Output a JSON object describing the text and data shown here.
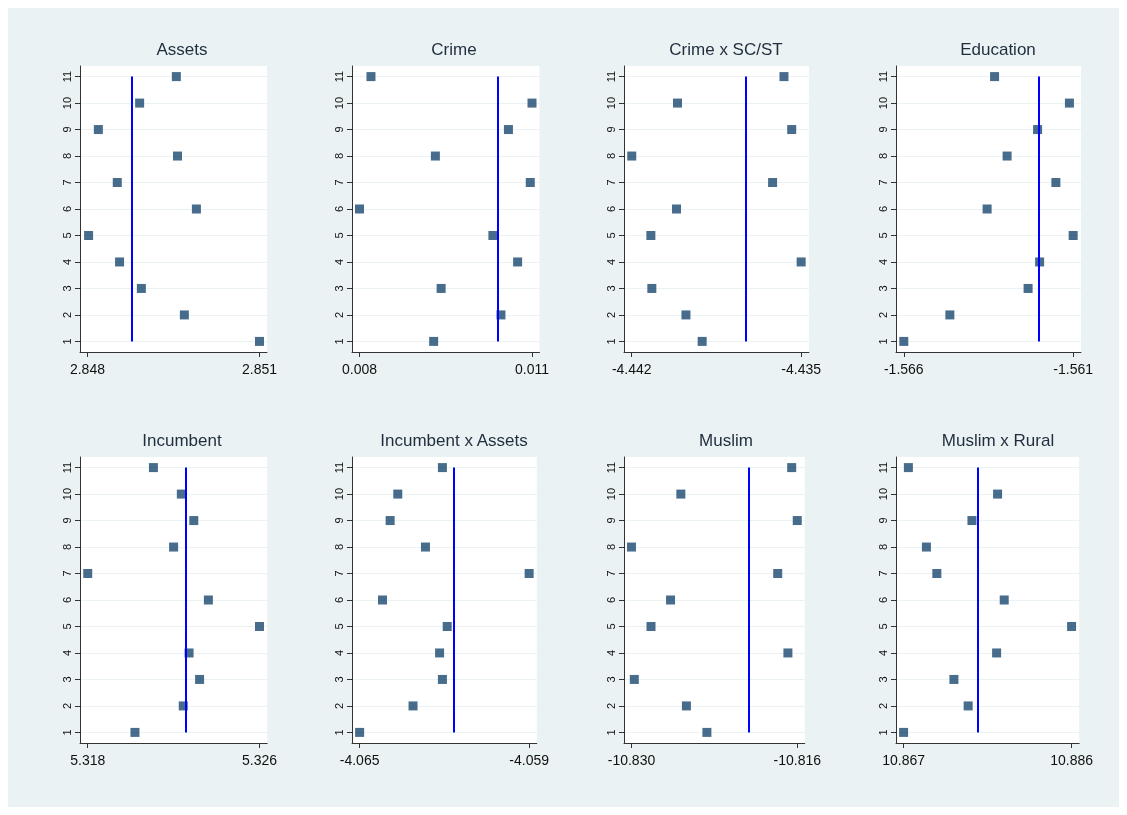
{
  "chart_data": [
    {
      "type": "scatter",
      "title": "Assets",
      "marker": "square",
      "grid": "y",
      "x": [
        2.851,
        2.84969,
        2.84894,
        2.84856,
        2.84802,
        2.8499,
        2.84852,
        2.84957,
        2.84819,
        2.84891,
        2.84955
      ],
      "values": [
        1,
        2,
        3,
        4,
        5,
        6,
        7,
        8,
        9,
        10,
        11
      ],
      "color": "#1a476f",
      "xlim": [
        2.84787,
        2.85113
      ],
      "xticks": [
        2.848,
        2.851
      ],
      "ylim": [
        0.6,
        11.4
      ],
      "yticks": [
        1,
        2,
        3,
        4,
        5,
        6,
        7,
        8,
        9,
        10,
        11
      ],
      "ref_lines": [
        {
          "axis": "x",
          "value": 2.84878,
          "color": "#0000ff"
        }
      ]
    },
    {
      "type": "scatter",
      "title": "Crime",
      "marker": "square",
      "grid": "y",
      "x": [
        0.00929,
        0.01046,
        0.00942,
        0.01075,
        0.01032,
        0.008,
        0.01097,
        0.00932,
        0.01059,
        0.011,
        0.0082
      ],
      "values": [
        1,
        2,
        3,
        4,
        5,
        6,
        7,
        8,
        9,
        10,
        11
      ],
      "color": "#1a476f",
      "xlim": [
        0.00787,
        0.01113
      ],
      "xticks": [
        0.008,
        0.011
      ],
      "ylim": [
        0.6,
        11.4
      ],
      "yticks": [
        1,
        2,
        3,
        4,
        5,
        6,
        7,
        8,
        9,
        10,
        11
      ],
      "ref_lines": [
        {
          "axis": "x",
          "value": 0.01041,
          "color": "#0000ff"
        }
      ]
    },
    {
      "type": "scatter",
      "title": "Crime x SC/ST",
      "marker": "square",
      "grid": "y",
      "x": [
        -4.43909,
        -4.43976,
        -4.44117,
        -4.435,
        -4.44121,
        -4.44015,
        -4.43618,
        -4.442,
        -4.43539,
        -4.44011,
        -4.43571
      ],
      "values": [
        1,
        2,
        3,
        4,
        5,
        6,
        7,
        8,
        9,
        10,
        11
      ],
      "color": "#1a476f",
      "xlim": [
        -4.44232,
        -4.43468
      ],
      "xticks": [
        -4.442,
        -4.435
      ],
      "ylim": [
        0.6,
        11.4
      ],
      "yticks": [
        1,
        2,
        3,
        4,
        5,
        6,
        7,
        8,
        9,
        10,
        11
      ],
      "ref_lines": [
        {
          "axis": "x",
          "value": -4.43728,
          "color": "#0000ff"
        }
      ]
    },
    {
      "type": "scatter",
      "title": "Education",
      "marker": "square",
      "grid": "y",
      "x": [
        -1.566,
        -1.56464,
        -1.56233,
        -1.56199,
        -1.561,
        -1.56354,
        -1.56151,
        -1.56295,
        -1.56205,
        -1.56111,
        -1.56332
      ],
      "values": [
        1,
        2,
        3,
        4,
        5,
        6,
        7,
        8,
        9,
        10,
        11
      ],
      "color": "#1a476f",
      "xlim": [
        -1.56623,
        -1.56077
      ],
      "xticks": [
        -1.566,
        -1.561
      ],
      "ylim": [
        0.6,
        11.4
      ],
      "yticks": [
        1,
        2,
        3,
        4,
        5,
        6,
        7,
        8,
        9,
        10,
        11
      ],
      "ref_lines": [
        {
          "axis": "x",
          "value": -1.56202,
          "color": "#0000ff"
        }
      ]
    },
    {
      "type": "scatter",
      "title": "Incumbent",
      "marker": "square",
      "grid": "y",
      "x": [
        5.3202,
        5.32245,
        5.32321,
        5.32272,
        5.326,
        5.32362,
        5.318,
        5.322,
        5.32294,
        5.32236,
        5.32106
      ],
      "values": [
        1,
        2,
        3,
        4,
        5,
        6,
        7,
        8,
        9,
        10,
        11
      ],
      "color": "#1a476f",
      "xlim": [
        5.31764,
        5.32636
      ],
      "xticks": [
        5.318,
        5.326
      ],
      "ylim": [
        0.6,
        11.4
      ],
      "yticks": [
        1,
        2,
        3,
        4,
        5,
        6,
        7,
        8,
        9,
        10,
        11
      ],
      "ref_lines": [
        {
          "axis": "x",
          "value": 5.32258,
          "color": "#0000ff"
        }
      ]
    },
    {
      "type": "scatter",
      "title": "Incumbent x Assets",
      "marker": "square",
      "grid": "y",
      "x": [
        -4.065,
        -4.06311,
        -4.06207,
        -4.06217,
        -4.0619,
        -4.06419,
        -4.059,
        -4.06267,
        -4.06392,
        -4.06365,
        -4.06207
      ],
      "values": [
        1,
        2,
        3,
        4,
        5,
        6,
        7,
        8,
        9,
        10,
        11
      ],
      "color": "#1a476f",
      "xlim": [
        -4.06527,
        -4.05873
      ],
      "xticks": [
        -4.065,
        -4.059
      ],
      "ylim": [
        0.6,
        11.4
      ],
      "yticks": [
        1,
        2,
        3,
        4,
        5,
        6,
        7,
        8,
        9,
        10,
        11
      ],
      "ref_lines": [
        {
          "axis": "x",
          "value": -4.06166,
          "color": "#0000ff"
        }
      ]
    },
    {
      "type": "scatter",
      "title": "Muslim",
      "marker": "square",
      "grid": "y",
      "x": [
        -10.82363,
        -10.82536,
        -10.82976,
        -10.81679,
        -10.82835,
        -10.8267,
        -10.81765,
        -10.83,
        -10.816,
        -10.82583,
        -10.81647
      ],
      "values": [
        1,
        2,
        3,
        4,
        5,
        6,
        7,
        8,
        9,
        10,
        11
      ],
      "color": "#1a476f",
      "xlim": [
        -10.83063,
        -10.81537
      ],
      "xticks": [
        {
          "value": -10.83,
          "label": "-10.830"
        },
        -10.816
      ],
      "ylim": [
        0.6,
        11.4
      ],
      "yticks": [
        1,
        2,
        3,
        4,
        5,
        6,
        7,
        8,
        9,
        10,
        11
      ],
      "ref_lines": [
        {
          "axis": "x",
          "value": -10.82009,
          "color": "#0000ff"
        }
      ]
    },
    {
      "type": "scatter",
      "title": "Muslim x Rural",
      "marker": "square",
      "grid": "y",
      "x": [
        10.867,
        10.8743,
        10.87269,
        10.87752,
        10.886,
        10.87838,
        10.87076,
        10.86958,
        10.87473,
        10.87763,
        10.86754
      ],
      "values": [
        1,
        2,
        3,
        4,
        5,
        6,
        7,
        8,
        9,
        10,
        11
      ],
      "color": "#1a476f",
      "xlim": [
        10.86614,
        10.88686
      ],
      "xticks": [
        10.867,
        10.886
      ],
      "ylim": [
        0.6,
        11.4
      ],
      "yticks": [
        1,
        2,
        3,
        4,
        5,
        6,
        7,
        8,
        9,
        10,
        11
      ],
      "ref_lines": [
        {
          "axis": "x",
          "value": 10.87537,
          "color": "#0000ff"
        }
      ]
    }
  ]
}
